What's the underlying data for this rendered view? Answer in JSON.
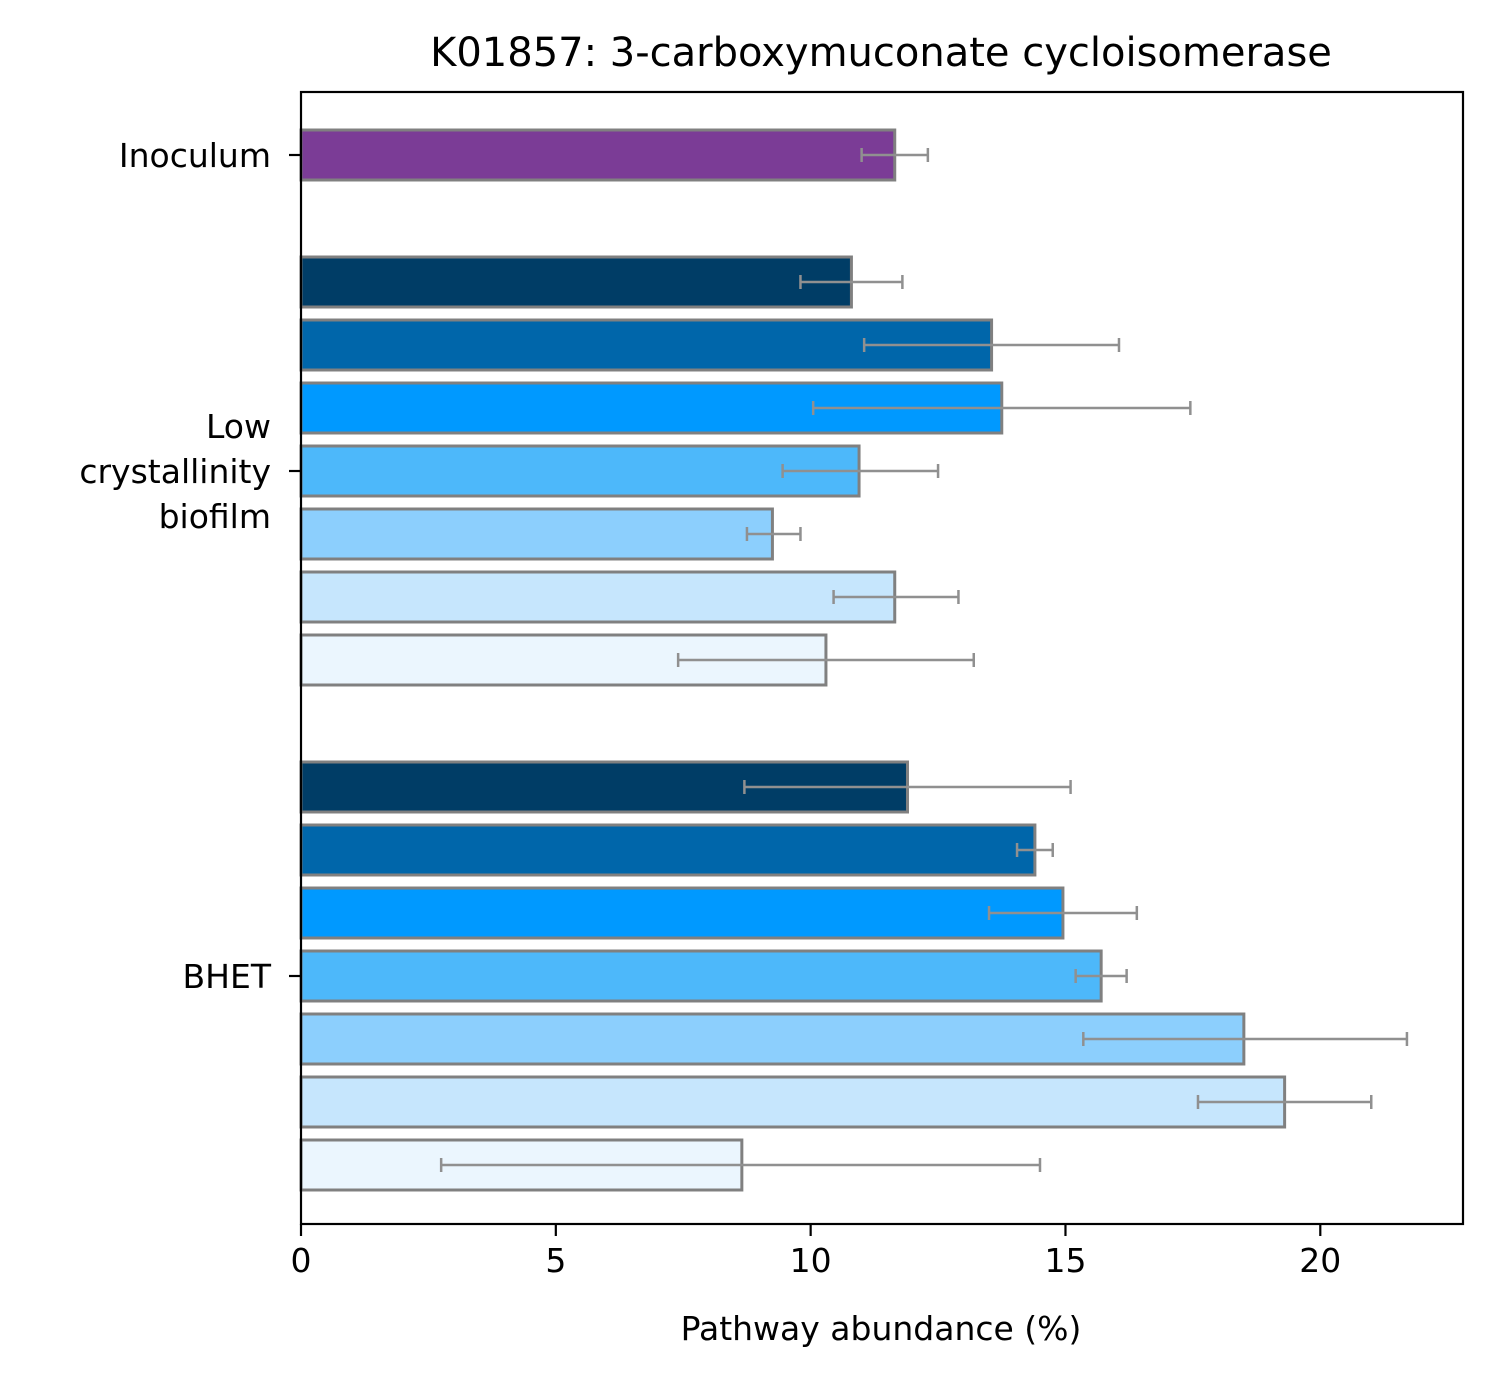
{
  "chart_data": {
    "type": "bar",
    "orientation": "horizontal",
    "title": "K01857: 3-carboxymuconate cycloisomerase",
    "xlabel": "Pathway abundance (%)",
    "ylabel": "",
    "xlim": [
      0,
      22.8
    ],
    "xticks": [
      0,
      5,
      10,
      15,
      20
    ],
    "grid": false,
    "error_bar_color": "#909090",
    "bar_edge_color": "#808080",
    "groups": [
      {
        "label": [
          "Inoculum"
        ],
        "bars": [
          {
            "value": 11.65,
            "err_low": 11.0,
            "err_high": 12.3,
            "color": "#7b3c96"
          }
        ]
      },
      {
        "label": [
          "Low",
          "crystallinity",
          "biofilm"
        ],
        "bars": [
          {
            "value": 10.8,
            "err_low": 9.8,
            "err_high": 11.8,
            "color": "#003d66"
          },
          {
            "value": 13.55,
            "err_low": 11.05,
            "err_high": 16.05,
            "color": "#0066aa"
          },
          {
            "value": 13.75,
            "err_low": 10.05,
            "err_high": 17.45,
            "color": "#0099ff"
          },
          {
            "value": 10.95,
            "err_low": 9.45,
            "err_high": 12.5,
            "color": "#4db8fa"
          },
          {
            "value": 9.25,
            "err_low": 8.75,
            "err_high": 9.8,
            "color": "#8ccffd"
          },
          {
            "value": 11.65,
            "err_low": 10.45,
            "err_high": 12.9,
            "color": "#c6e6fd"
          },
          {
            "value": 10.3,
            "err_low": 7.4,
            "err_high": 13.2,
            "color": "#ebf6fe"
          }
        ]
      },
      {
        "label": [
          "BHET"
        ],
        "bars": [
          {
            "value": 11.9,
            "err_low": 8.7,
            "err_high": 15.1,
            "color": "#003d66"
          },
          {
            "value": 14.4,
            "err_low": 14.05,
            "err_high": 14.75,
            "color": "#0066aa"
          },
          {
            "value": 14.95,
            "err_low": 13.5,
            "err_high": 16.4,
            "color": "#0099ff"
          },
          {
            "value": 15.7,
            "err_low": 15.2,
            "err_high": 16.2,
            "color": "#4db8fa"
          },
          {
            "value": 18.5,
            "err_low": 15.35,
            "err_high": 21.7,
            "color": "#8ccffd"
          },
          {
            "value": 19.3,
            "err_low": 17.6,
            "err_high": 21.0,
            "color": "#c6e6fd"
          },
          {
            "value": 8.65,
            "err_low": 2.75,
            "err_high": 14.5,
            "color": "#ebf6fe"
          }
        ]
      }
    ]
  }
}
